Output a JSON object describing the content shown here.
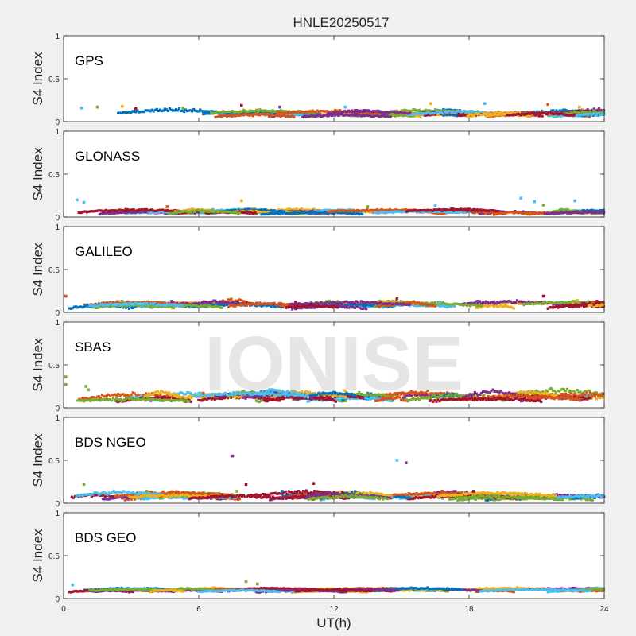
{
  "figure": {
    "title": "HNLE20250517",
    "xlabel": "UT(h)",
    "watermark": "IONISE",
    "background": "#f0f0f0"
  },
  "chart_data": {
    "type": "scatter",
    "title": "HNLE20250517",
    "xlabel": "UT(h)",
    "xlim": [
      0,
      24
    ],
    "xticks": [
      0,
      6,
      12,
      18,
      24
    ],
    "xtick_labels": [
      "0",
      "6",
      "12",
      "18",
      "24"
    ],
    "series_colors": [
      "#0072BD",
      "#D95319",
      "#EDB120",
      "#7E2F8E",
      "#77AC30",
      "#4DBEEE",
      "#A2142F"
    ],
    "panels": [
      {
        "label": "GPS",
        "ylabel": "S4 Index",
        "ylim": [
          0,
          1
        ],
        "yticks": [
          0,
          0.5,
          1
        ],
        "ytick_labels": [
          "0",
          "0.5",
          "1"
        ],
        "base": 0.08,
        "var": 0.03,
        "highlights": [
          {
            "x": 0.8,
            "y": 0.16,
            "c": 5
          },
          {
            "x": 1.5,
            "y": 0.17,
            "c": 4
          },
          {
            "x": 2.6,
            "y": 0.18,
            "c": 2
          },
          {
            "x": 5.3,
            "y": 0.16,
            "c": 4
          },
          {
            "x": 7.9,
            "y": 0.19,
            "c": 6
          },
          {
            "x": 9.6,
            "y": 0.17,
            "c": 3
          },
          {
            "x": 12.5,
            "y": 0.17,
            "c": 5
          },
          {
            "x": 16.3,
            "y": 0.21,
            "c": 2
          },
          {
            "x": 18.7,
            "y": 0.21,
            "c": 5
          },
          {
            "x": 21.5,
            "y": 0.2,
            "c": 1
          },
          {
            "x": 22.9,
            "y": 0.17,
            "c": 2
          },
          {
            "x": 3.2,
            "y": 0.15,
            "c": 6
          }
        ]
      },
      {
        "label": "GLONASS",
        "ylabel": "S4 Index",
        "ylim": [
          0,
          1
        ],
        "yticks": [
          0,
          0.5,
          1
        ],
        "ytick_labels": [
          "0",
          "0.5",
          "1"
        ],
        "base": 0.05,
        "var": 0.025,
        "highlights": [
          {
            "x": 0.6,
            "y": 0.2,
            "c": 5
          },
          {
            "x": 0.9,
            "y": 0.17,
            "c": 5
          },
          {
            "x": 4.6,
            "y": 0.12,
            "c": 1
          },
          {
            "x": 7.9,
            "y": 0.19,
            "c": 2
          },
          {
            "x": 13.5,
            "y": 0.12,
            "c": 4
          },
          {
            "x": 16.5,
            "y": 0.13,
            "c": 5
          },
          {
            "x": 20.3,
            "y": 0.22,
            "c": 5
          },
          {
            "x": 20.9,
            "y": 0.18,
            "c": 5
          },
          {
            "x": 22.7,
            "y": 0.19,
            "c": 5
          },
          {
            "x": 21.3,
            "y": 0.14,
            "c": 4
          }
        ]
      },
      {
        "label": "GALILEO",
        "ylabel": "S4 Index",
        "ylim": [
          0,
          1
        ],
        "yticks": [
          0,
          0.5,
          1
        ],
        "ytick_labels": [
          "0",
          "0.5",
          "1"
        ],
        "base": 0.07,
        "var": 0.035,
        "highlights": [
          {
            "x": 0.1,
            "y": 0.19,
            "c": 1
          },
          {
            "x": 2.6,
            "y": 0.13,
            "c": 4
          },
          {
            "x": 4.8,
            "y": 0.13,
            "c": 3
          },
          {
            "x": 10.3,
            "y": 0.12,
            "c": 6
          },
          {
            "x": 14.8,
            "y": 0.16,
            "c": 6
          },
          {
            "x": 16.7,
            "y": 0.12,
            "c": 5
          },
          {
            "x": 21.3,
            "y": 0.19,
            "c": 6
          },
          {
            "x": 22.8,
            "y": 0.14,
            "c": 2
          },
          {
            "x": 23.5,
            "y": 0.12,
            "c": 1
          }
        ]
      },
      {
        "label": "SBAS",
        "ylabel": "S4 Index",
        "ylim": [
          0,
          1
        ],
        "yticks": [
          0,
          0.5,
          1
        ],
        "ytick_labels": [
          "0",
          "0.5",
          "1"
        ],
        "base": 0.11,
        "var": 0.045,
        "highlights": [
          {
            "x": 0.1,
            "y": 0.36,
            "c": 4
          },
          {
            "x": 0.1,
            "y": 0.27,
            "c": 4
          },
          {
            "x": 1.0,
            "y": 0.25,
            "c": 4
          },
          {
            "x": 1.1,
            "y": 0.21,
            "c": 4
          },
          {
            "x": 12.5,
            "y": 0.2,
            "c": 2
          },
          {
            "x": 6.2,
            "y": 0.17,
            "c": 1
          }
        ]
      },
      {
        "label": "BDS NGEO",
        "ylabel": "S4 Index",
        "ylim": [
          0,
          1
        ],
        "yticks": [
          0,
          0.5,
          1
        ],
        "ytick_labels": [
          "0",
          "0.5",
          "1"
        ],
        "base": 0.06,
        "var": 0.035,
        "highlights": [
          {
            "x": 7.5,
            "y": 0.55,
            "c": 3
          },
          {
            "x": 14.8,
            "y": 0.5,
            "c": 5
          },
          {
            "x": 15.2,
            "y": 0.47,
            "c": 3
          },
          {
            "x": 0.9,
            "y": 0.22,
            "c": 4
          },
          {
            "x": 8.1,
            "y": 0.22,
            "c": 6
          },
          {
            "x": 11.1,
            "y": 0.23,
            "c": 6
          },
          {
            "x": 7.7,
            "y": 0.14,
            "c": 4
          },
          {
            "x": 3.7,
            "y": 0.14,
            "c": 4
          },
          {
            "x": 16.8,
            "y": 0.14,
            "c": 1
          },
          {
            "x": 18.2,
            "y": 0.14,
            "c": 6
          },
          {
            "x": 9.7,
            "y": 0.14,
            "c": 0
          }
        ]
      },
      {
        "label": "BDS GEO",
        "ylabel": "S4 Index",
        "ylim": [
          0,
          1
        ],
        "yticks": [
          0,
          0.5,
          1
        ],
        "ytick_labels": [
          "0",
          "0.5",
          "1"
        ],
        "base": 0.09,
        "var": 0.02,
        "highlights": [
          {
            "x": 8.1,
            "y": 0.2,
            "c": 4
          },
          {
            "x": 0.4,
            "y": 0.16,
            "c": 5
          },
          {
            "x": 8.6,
            "y": 0.17,
            "c": 4
          }
        ]
      }
    ]
  }
}
